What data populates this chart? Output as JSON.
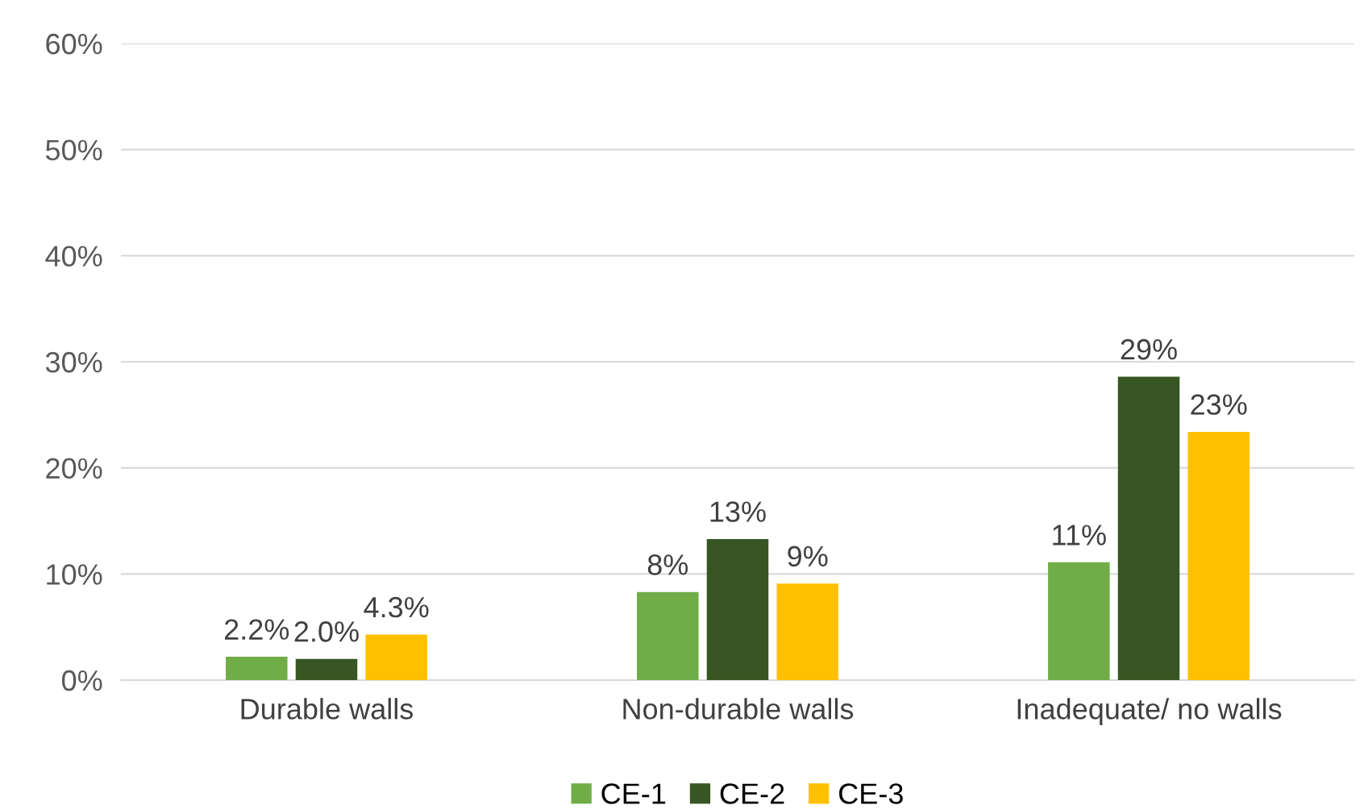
{
  "chart_data": {
    "type": "bar",
    "categories": [
      "Durable walls",
      "Non-durable walls",
      "Inadequate/ no walls"
    ],
    "series": [
      {
        "name": "CE-1",
        "color": "#70ad47",
        "values": [
          2.2,
          8.3,
          11.1
        ],
        "value_labels": [
          "2.2%",
          "8%",
          "11%"
        ]
      },
      {
        "name": "CE-2",
        "color": "#375623",
        "values": [
          2.0,
          13.3,
          28.6
        ],
        "value_labels": [
          "2.0%",
          "13%",
          "29%"
        ]
      },
      {
        "name": "CE-3",
        "color": "#ffc000",
        "values": [
          4.3,
          9.1,
          23.4
        ],
        "value_labels": [
          "4.3%",
          "9%",
          "23%"
        ]
      }
    ],
    "ylim": [
      0,
      60
    ],
    "yticks": [
      {
        "value": 0,
        "label": "0%"
      },
      {
        "value": 10,
        "label": "10%"
      },
      {
        "value": 20,
        "label": "20%"
      },
      {
        "value": 30,
        "label": "30%"
      },
      {
        "value": 40,
        "label": "40%"
      },
      {
        "value": 50,
        "label": "50%"
      },
      {
        "value": 60,
        "label": "60%"
      }
    ],
    "grid": "y",
    "legend": "bottom"
  }
}
